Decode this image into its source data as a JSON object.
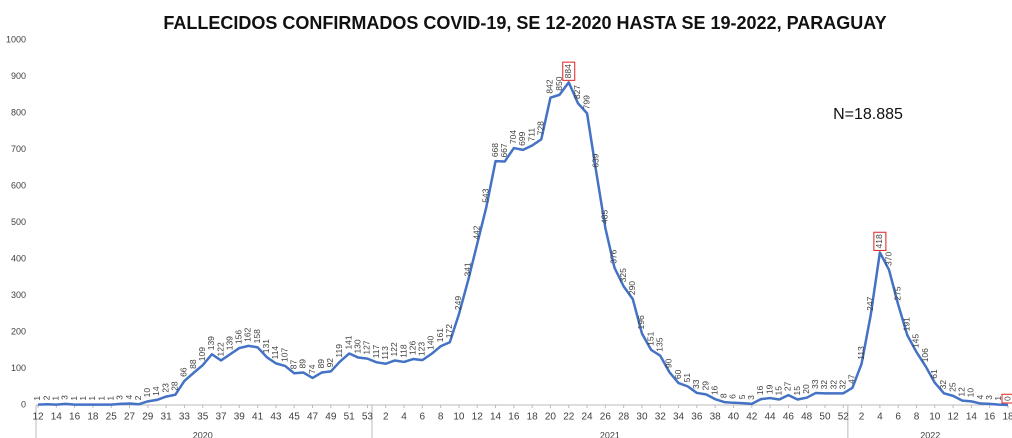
{
  "chart_data": {
    "type": "line",
    "title": "FALLECIDOS CONFIRMADOS COVID-19, SE 12-2020 HASTA SE 19-2022, PARAGUAY",
    "annotation": "N=18.885",
    "categories": [
      "12",
      null,
      "14",
      null,
      "16",
      null,
      "18",
      null,
      "25",
      null,
      "27",
      null,
      "29",
      null,
      "31",
      null,
      "33",
      null,
      "35",
      null,
      "37",
      null,
      "39",
      null,
      "41",
      null,
      "43",
      null,
      "45",
      null,
      "47",
      null,
      "49",
      null,
      "51",
      null,
      "53",
      null,
      "2",
      null,
      "4",
      null,
      "6",
      null,
      "8",
      null,
      "10",
      null,
      "12",
      null,
      "14",
      null,
      "16",
      null,
      "18",
      null,
      "20",
      null,
      "22",
      null,
      "24",
      null,
      "26",
      null,
      "28",
      null,
      "30",
      null,
      "32",
      null,
      "34",
      null,
      "36",
      null,
      "38",
      null,
      "40",
      null,
      "42",
      null,
      "44",
      null,
      "46",
      null,
      "48",
      null,
      "50",
      null,
      "52",
      null,
      "2",
      null,
      "4",
      null,
      "6",
      null,
      "8",
      null,
      "10",
      null,
      "12",
      null,
      "14",
      null,
      "16",
      null,
      "18"
    ],
    "year_labels": [
      "2020",
      "2021",
      "2022"
    ],
    "series": [
      {
        "name": "Fallecidos",
        "color": "#4472c4",
        "values": [
          1,
          2,
          1,
          3,
          1,
          1,
          1,
          1,
          1,
          3,
          4,
          2,
          10,
          14,
          23,
          28,
          66,
          88,
          109,
          139,
          122,
          139,
          156,
          162,
          158,
          131,
          114,
          107,
          87,
          89,
          74,
          89,
          92,
          119,
          141,
          130,
          127,
          117,
          113,
          122,
          118,
          126,
          123,
          140,
          161,
          172,
          249,
          341,
          442,
          543,
          668,
          667,
          704,
          699,
          711,
          728,
          842,
          850,
          884,
          827,
          799,
          639,
          485,
          376,
          325,
          290,
          196,
          151,
          135,
          90,
          60,
          51,
          33,
          29,
          16,
          8,
          6,
          5,
          3,
          16,
          19,
          15,
          27,
          15,
          20,
          33,
          32,
          32,
          32,
          47,
          113,
          247,
          418,
          370,
          275,
          191,
          145,
          106,
          61,
          32,
          25,
          12,
          10,
          4,
          3,
          1,
          0
        ]
      }
    ],
    "highlight_color": "#e02020",
    "highlighted_points": [
      58,
      92,
      106
    ],
    "ylim": [
      0,
      1000
    ],
    "yticks": [
      0,
      100,
      200,
      300,
      400,
      500,
      600,
      700,
      800,
      900,
      1000
    ],
    "grid": false
  }
}
